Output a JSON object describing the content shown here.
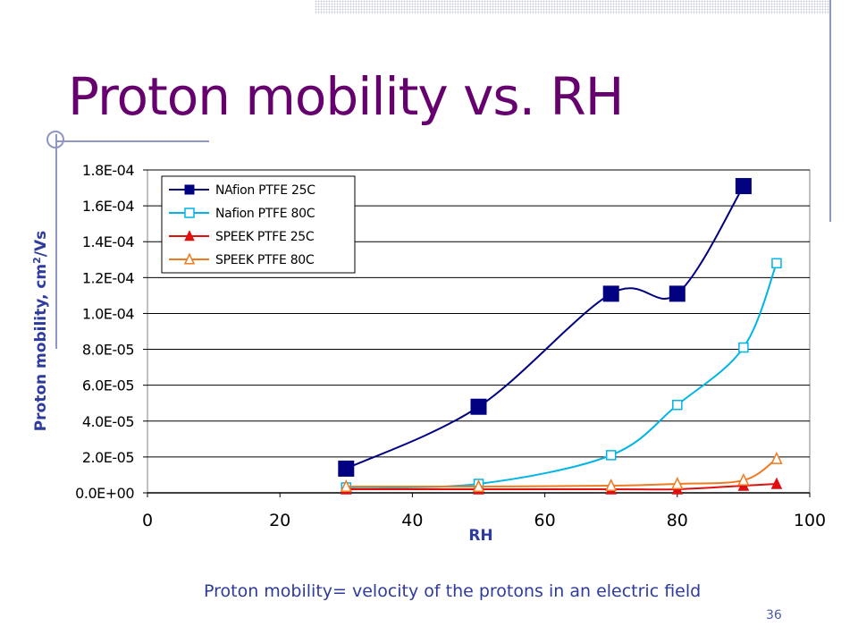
{
  "slide": {
    "title": "Proton mobility vs. RH",
    "caption": "Proton mobility= velocity of the protons in an electric field",
    "number": "36"
  },
  "colors": {
    "title": "#66006e",
    "caption": "#2e3b9e",
    "decoration": "#8f97c4"
  },
  "chart_data": {
    "type": "line",
    "title": "",
    "xlabel": "RH",
    "ylabel": "Proton mobility, cm2/Vs",
    "xlim": [
      0,
      100
    ],
    "ylim": [
      0,
      0.00018
    ],
    "x_ticks": [
      0,
      20,
      40,
      60,
      80,
      100
    ],
    "x_tick_labels": [
      "0",
      "20",
      "40",
      "60",
      "80",
      "100"
    ],
    "y_ticks": [
      0,
      2e-05,
      4e-05,
      6e-05,
      8e-05,
      0.0001,
      0.00012,
      0.00014,
      0.00016,
      0.00018
    ],
    "y_tick_labels": [
      "0.0E+00",
      "2.0E-05",
      "4.0E-05",
      "6.0E-05",
      "8.0E-05",
      "1.0E-04",
      "1.2E-04",
      "1.4E-04",
      "1.6E-04",
      "1.8E-04"
    ],
    "grid": "horizontal",
    "legend_position": "top-left",
    "series": [
      {
        "name": "NAfion PTFE 25C",
        "color": "#000080",
        "marker": "square-filled",
        "x": [
          30,
          50,
          70,
          80,
          90
        ],
        "y": [
          1.35e-05,
          4.8e-05,
          0.000111,
          0.000111,
          0.000171
        ]
      },
      {
        "name": "Nafion PTFE 80C",
        "color": "#00b4e6",
        "marker": "square-open",
        "x": [
          30,
          50,
          70,
          80,
          90,
          95
        ],
        "y": [
          3e-06,
          5e-06,
          2.1e-05,
          4.9e-05,
          8.1e-05,
          0.000128
        ]
      },
      {
        "name": "SPEEK PTFE 25C",
        "color": "#e01010",
        "marker": "triangle-filled",
        "x": [
          30,
          50,
          70,
          80,
          90,
          95
        ],
        "y": [
          2e-06,
          2e-06,
          2e-06,
          2e-06,
          4e-06,
          5e-06
        ]
      },
      {
        "name": "SPEEK PTFE 80C",
        "color": "#f07a20",
        "marker": "triangle-open",
        "x": [
          30,
          50,
          70,
          80,
          90,
          95
        ],
        "y": [
          3.5e-06,
          3.5e-06,
          4e-06,
          5e-06,
          7e-06,
          1.9e-05
        ]
      }
    ]
  }
}
